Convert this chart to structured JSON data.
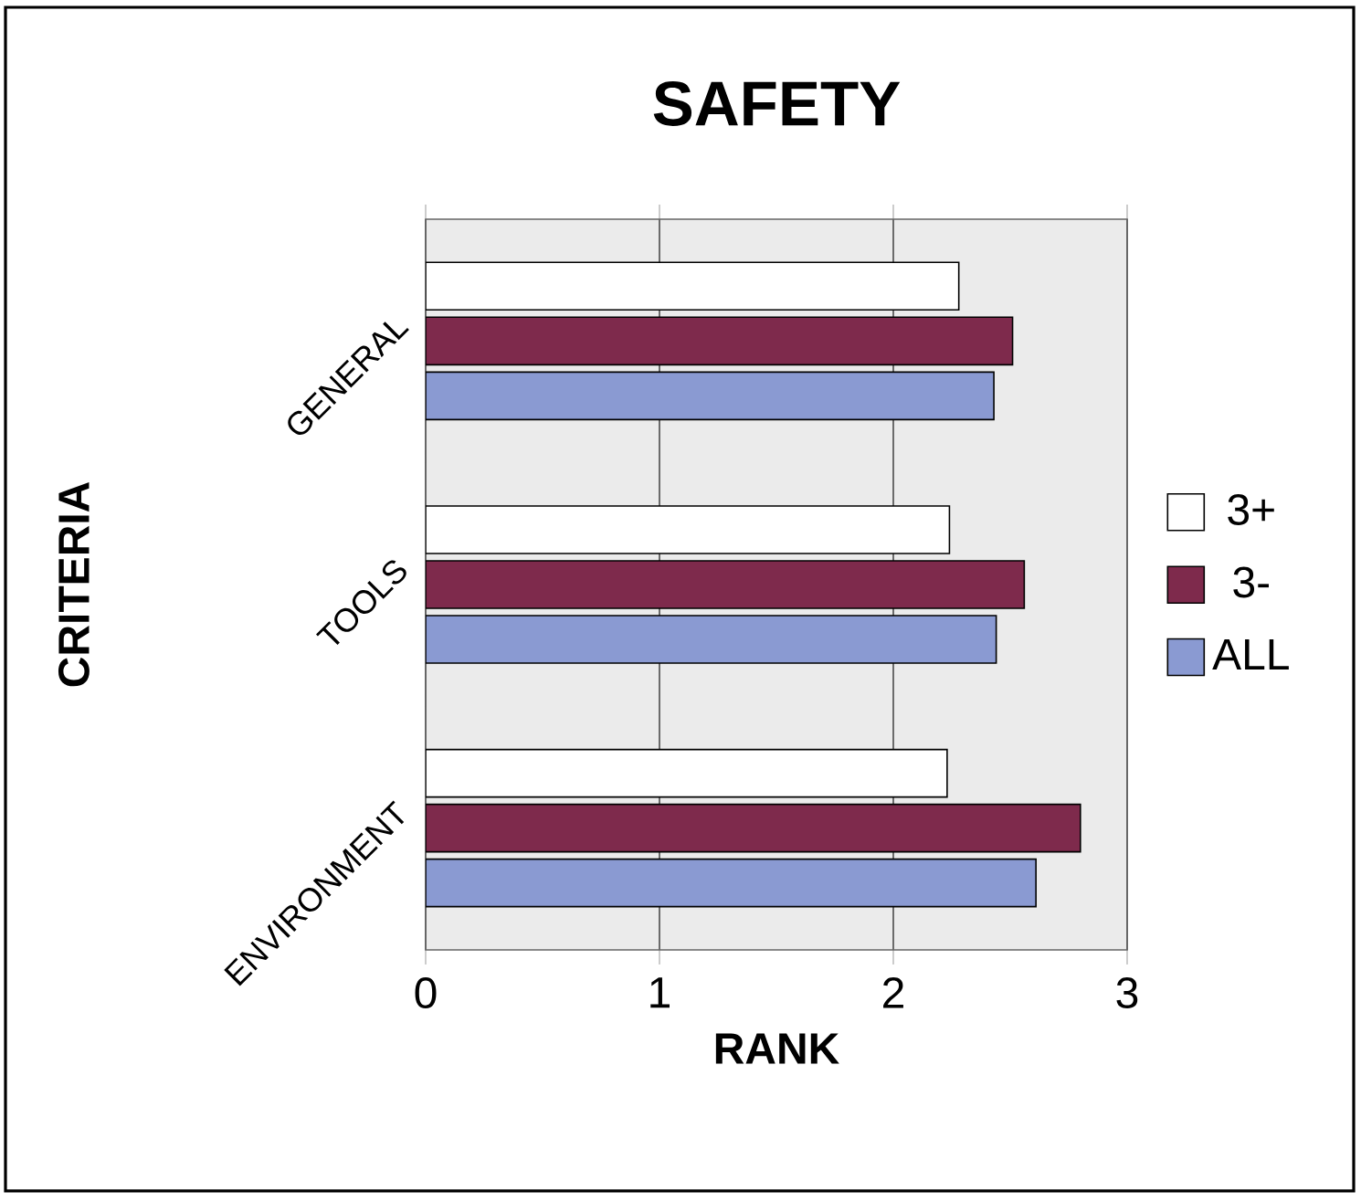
{
  "chart_data": {
    "type": "bar",
    "orientation": "horizontal",
    "title": "SAFETY",
    "xlabel": "RANK",
    "ylabel": "CRITERIA",
    "categories": [
      "GENERAL",
      "TOOLS",
      "ENVIRONMENT"
    ],
    "series": [
      {
        "name": "3+",
        "color": "#ffffff",
        "values": [
          2.28,
          2.24,
          2.23
        ]
      },
      {
        "name": "3-",
        "color": "#7e2a4c",
        "values": [
          2.51,
          2.56,
          2.8
        ]
      },
      {
        "name": "ALL",
        "color": "#8a9ad2",
        "values": [
          2.43,
          2.44,
          2.61
        ]
      }
    ],
    "xlim": [
      0,
      3
    ],
    "xticks": [
      0,
      1,
      2,
      3
    ],
    "grid": "x",
    "legend": "right"
  }
}
